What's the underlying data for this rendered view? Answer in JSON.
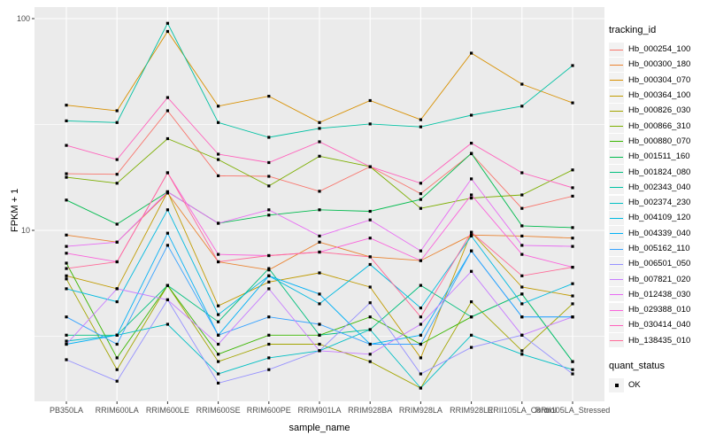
{
  "figure": {
    "background": "#ffffff",
    "panel_background": "#ebebeb",
    "gridline_color": "#ffffff",
    "tick_color": "#333333",
    "tick_label_color": "#4d4d4d",
    "point_color": "#000000"
  },
  "axes": {
    "x": {
      "title": "sample_name",
      "categories": [
        "PB350LA",
        "RRIM600LA",
        "RRIM600LE",
        "RRIM600SE",
        "RRIM600PE",
        "RRIM901LA",
        "RRIM928BA",
        "RRIM928LA",
        "RRIM928LE",
        "RRII105LA_Control",
        "RRII105LA_Stressed"
      ]
    },
    "y": {
      "title": "FPKM + 1",
      "scale": "log10",
      "tick_labels": [
        "100",
        "10"
      ],
      "tick_values": [
        100,
        10
      ],
      "minor_tick_values": [
        31.6,
        3.16
      ],
      "range": [
        1.6,
        113
      ]
    }
  },
  "legend": {
    "tracking_title": "tracking_id",
    "quant_title": "quant_status",
    "quant_entries": [
      {
        "label": "OK",
        "marker": "black-square"
      }
    ]
  },
  "chart_data": {
    "type": "line",
    "x_label": "sample_name",
    "y_label": "FPKM + 1",
    "y_scale": "log10",
    "ylim": [
      1.6,
      113
    ],
    "grid": "major-and-minor-white-on-gray",
    "legend_position": "right",
    "marker": "small-black-square (quant_status OK)",
    "categories": [
      "PB350LA",
      "RRIM600LA",
      "RRIM600LE",
      "RRIM600SE",
      "RRIM600PE",
      "RRIM901LA",
      "RRIM928BA",
      "RRIM928LA",
      "RRIM928LE",
      "RRII105LA_Control",
      "RRII105LA_Stressed"
    ],
    "series": [
      {
        "name": "Hb_000254_100",
        "color": "#F8766D",
        "values": [
          18.5,
          18.4,
          36.7,
          18.1,
          18.0,
          15.3,
          20.0,
          14.9,
          23.0,
          12.7,
          14.5
        ]
      },
      {
        "name": "Hb_000300_180",
        "color": "#EA8331",
        "values": [
          9.5,
          8.8,
          15.0,
          7.1,
          6.5,
          8.8,
          7.5,
          7.2,
          9.5,
          9.4,
          9.2
        ]
      },
      {
        "name": "Hb_000304_070",
        "color": "#D89000",
        "values": [
          39.0,
          36.7,
          87.0,
          38.6,
          43.0,
          32.3,
          41.0,
          33.3,
          68.7,
          49.0,
          40.0
        ]
      },
      {
        "name": "Hb_000364_100",
        "color": "#C09B00",
        "values": [
          6.1,
          5.3,
          15.2,
          4.4,
          5.7,
          6.3,
          5.4,
          2.5,
          9.8,
          5.4,
          4.9
        ]
      },
      {
        "name": "Hb_000826_030",
        "color": "#A3A500",
        "values": [
          5.9,
          2.2,
          5.5,
          2.4,
          2.9,
          2.9,
          2.4,
          1.8,
          4.6,
          2.7,
          4.5
        ]
      },
      {
        "name": "Hb_000866_310",
        "color": "#7CAE00",
        "values": [
          17.8,
          16.7,
          27.1,
          21.6,
          16.2,
          22.4,
          20.0,
          12.7,
          14.2,
          14.7,
          19.3
        ]
      },
      {
        "name": "Hb_000880_070",
        "color": "#39B600",
        "values": [
          7.0,
          2.5,
          5.5,
          2.6,
          3.2,
          3.2,
          3.9,
          2.9,
          3.9,
          5.0,
          2.4
        ]
      },
      {
        "name": "Hb_001511_160",
        "color": "#00BB4E",
        "values": [
          13.9,
          10.7,
          15.2,
          10.8,
          11.8,
          12.5,
          12.3,
          14.0,
          23.1,
          10.5,
          10.3
        ]
      },
      {
        "name": "Hb_001824_080",
        "color": "#00BF7D",
        "values": [
          3.2,
          3.2,
          5.5,
          3.7,
          6.6,
          3.2,
          3.4,
          5.5,
          3.9,
          5.0,
          2.4
        ]
      },
      {
        "name": "Hb_002343_040",
        "color": "#00C1A3",
        "values": [
          32.9,
          32.3,
          95.0,
          32.3,
          27.5,
          30.3,
          31.8,
          30.8,
          35.0,
          38.6,
          60.0
        ]
      },
      {
        "name": "Hb_002374_230",
        "color": "#00BFC4",
        "values": [
          3.0,
          3.2,
          3.6,
          2.1,
          2.5,
          2.7,
          3.4,
          1.8,
          3.2,
          2.6,
          2.2
        ]
      },
      {
        "name": "Hb_004109_120",
        "color": "#00BAE0",
        "values": [
          5.3,
          4.6,
          12.5,
          4.0,
          6.1,
          4.5,
          6.9,
          4.3,
          9.4,
          4.5,
          5.6
        ]
      },
      {
        "name": "Hb_004339_040",
        "color": "#00B0F6",
        "values": [
          2.9,
          3.2,
          9.7,
          3.2,
          6.1,
          5.0,
          2.9,
          3.2,
          8.0,
          3.9,
          3.9
        ]
      },
      {
        "name": "Hb_005162_110",
        "color": "#35A2FF",
        "values": [
          3.9,
          2.9,
          8.5,
          3.2,
          3.9,
          3.6,
          2.9,
          2.9,
          8.0,
          3.9,
          3.9
        ]
      },
      {
        "name": "Hb_006501_050",
        "color": "#9590FF",
        "values": [
          2.45,
          1.94,
          4.7,
          1.9,
          2.2,
          2.7,
          4.55,
          2.1,
          2.8,
          3.2,
          2.1
        ]
      },
      {
        "name": "Hb_007821_020",
        "color": "#C77CFF",
        "values": [
          2.9,
          5.3,
          4.7,
          2.9,
          5.3,
          2.7,
          2.6,
          3.6,
          6.4,
          3.2,
          3.9
        ]
      },
      {
        "name": "Hb_012438_030",
        "color": "#E76BF3",
        "values": [
          8.4,
          8.8,
          15.2,
          10.8,
          12.5,
          9.4,
          11.2,
          8.0,
          17.5,
          8.5,
          8.4
        ]
      },
      {
        "name": "Hb_029388_010",
        "color": "#FA62DB",
        "values": [
          7.8,
          7.1,
          18.7,
          7.7,
          7.6,
          7.9,
          9.2,
          7.2,
          14.7,
          7.7,
          6.7
        ]
      },
      {
        "name": "Hb_030414_040",
        "color": "#FF62BC",
        "values": [
          25.2,
          21.6,
          42.4,
          22.9,
          20.9,
          26.2,
          20.0,
          16.7,
          25.8,
          18.7,
          15.9
        ]
      },
      {
        "name": "Hb_138435_010",
        "color": "#FF6A98",
        "values": [
          6.6,
          7.1,
          18.7,
          7.1,
          7.6,
          7.9,
          7.5,
          3.9,
          9.8,
          6.1,
          6.7
        ]
      }
    ]
  }
}
